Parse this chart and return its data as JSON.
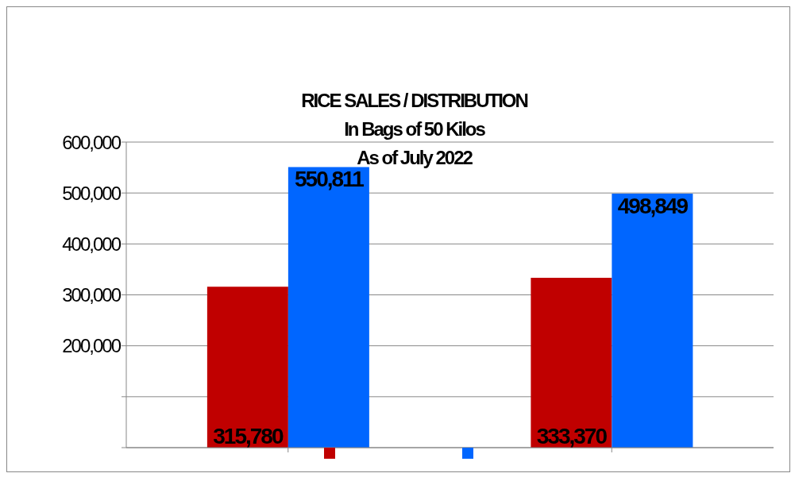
{
  "chart_data": {
    "type": "bar",
    "title": "RICE SALES / DISTRIBUTION\nIn Bags of 50 Kilos\nAs of July 2022",
    "categories": [
      null,
      null
    ],
    "series": [
      {
        "color": "#c00000",
        "values": [
          315780,
          333370
        ],
        "value_labels": [
          "315,780",
          "333,370"
        ]
      },
      {
        "color": "#0066ff",
        "values": [
          550811,
          498849
        ],
        "value_labels": [
          "550,811",
          "498,849"
        ]
      }
    ],
    "ylim": [
      0,
      600000
    ],
    "yticks": [
      {
        "value": 0,
        "label": null
      },
      {
        "value": 100000,
        "label": null
      },
      {
        "value": 200000,
        "label": "200,000"
      },
      {
        "value": 300000,
        "label": "300,000"
      },
      {
        "value": 400000,
        "label": "400,000"
      },
      {
        "value": 500000,
        "label": "500,000"
      },
      {
        "value": 600000,
        "label": "600,000"
      }
    ],
    "grid": "y"
  }
}
